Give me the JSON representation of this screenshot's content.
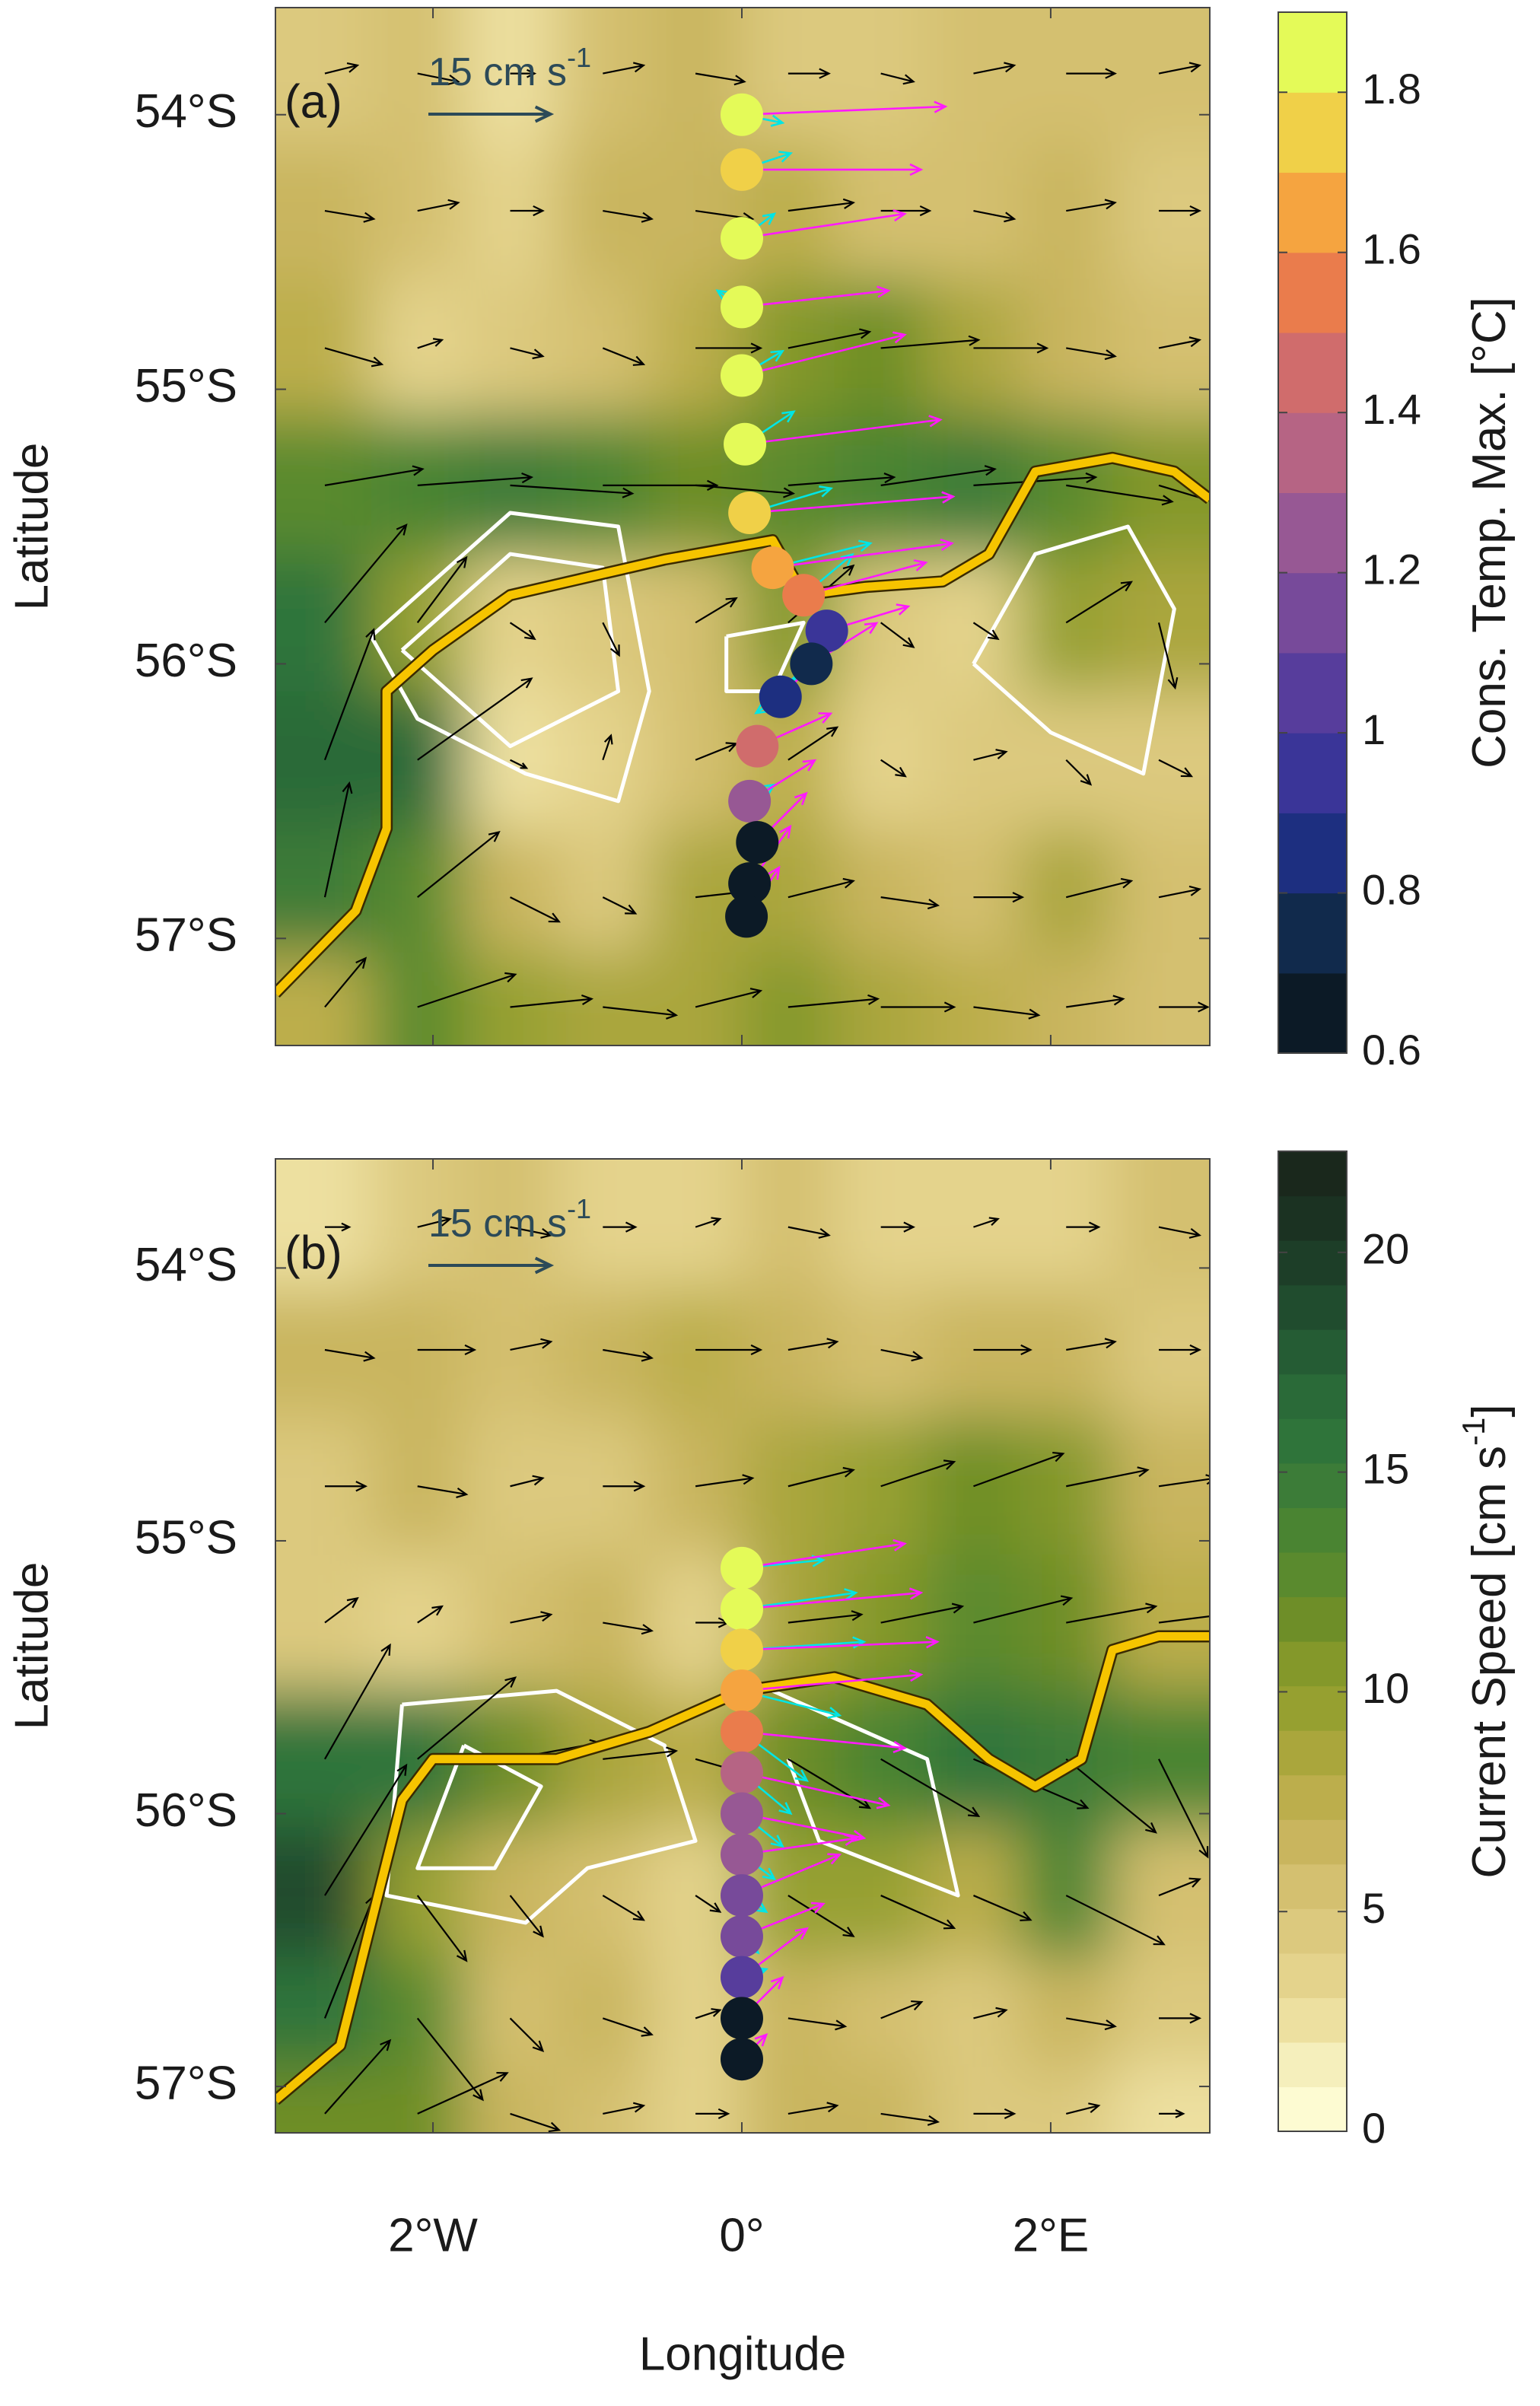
{
  "chart_data": [
    {
      "type": "quiver-map",
      "panel_label": "(a)",
      "scale_key": {
        "value": 15,
        "label": "15 cm s",
        "sup": "-1"
      },
      "ylabel": "Latitude",
      "xlim": [
        -3.02,
        3.03
      ],
      "ylim": [
        -57.39,
        -53.61
      ],
      "xticks": [
        -2,
        0,
        2
      ],
      "yticks": [
        {
          "value": -54,
          "label": "54°S"
        },
        {
          "value": -55,
          "label": "55°S"
        },
        {
          "value": -56,
          "label": "56°S"
        },
        {
          "value": -57,
          "label": "57°S"
        }
      ],
      "grid_lon": [
        -2.7,
        -2.1,
        -1.5,
        -0.9,
        -0.3,
        0.3,
        0.9,
        1.5,
        2.1,
        2.7
      ],
      "grid_lat": [
        -53.85,
        -54.35,
        -54.85,
        -55.35,
        -55.85,
        -56.35,
        -56.85,
        -57.25
      ],
      "u": [
        [
          4,
          5,
          3,
          5,
          6,
          5,
          4,
          5,
          6,
          5
        ],
        [
          6,
          5,
          4,
          6,
          7,
          8,
          6,
          5,
          6,
          5
        ],
        [
          7,
          3,
          4,
          5,
          8,
          10,
          12,
          9,
          6,
          5
        ],
        [
          12,
          14,
          15,
          14,
          12,
          13,
          14,
          15,
          13,
          10
        ],
        [
          10,
          6,
          3,
          2,
          5,
          8,
          4,
          3,
          8,
          2
        ],
        [
          6,
          14,
          2,
          1,
          5,
          6,
          3,
          4,
          3,
          4
        ],
        [
          3,
          10,
          6,
          4,
          9,
          8,
          7,
          6,
          8,
          5
        ],
        [
          5,
          12,
          10,
          9,
          8,
          11,
          9,
          8,
          7,
          6
        ]
      ],
      "v": [
        [
          1,
          -1,
          0,
          1,
          -1,
          0,
          -1,
          1,
          0,
          1
        ],
        [
          -1,
          1,
          0,
          -1,
          -1,
          1,
          0,
          -1,
          1,
          0
        ],
        [
          -2,
          1,
          -1,
          -2,
          0,
          2,
          1,
          0,
          -1,
          1
        ],
        [
          2,
          1,
          -1,
          0,
          -1,
          1,
          2,
          1,
          -2,
          -3
        ],
        [
          12,
          8,
          -2,
          -4,
          3,
          7,
          -3,
          -2,
          5,
          -8
        ],
        [
          16,
          10,
          -1,
          3,
          2,
          4,
          -2,
          1,
          -3,
          -2
        ],
        [
          14,
          8,
          -3,
          -2,
          1,
          2,
          -1,
          0,
          2,
          1
        ],
        [
          6,
          4,
          1,
          -1,
          2,
          1,
          0,
          -1,
          1,
          0
        ]
      ],
      "front": {
        "lon": [
          -3.02,
          -2.5,
          -2.3,
          -2.3,
          -2.0,
          -1.5,
          -0.5,
          0.2,
          0.4,
          0.8,
          1.3,
          1.6,
          1.9,
          2.4,
          2.8,
          3.03
        ],
        "lat": [
          -57.2,
          -56.9,
          -56.6,
          -56.1,
          -55.95,
          -55.75,
          -55.62,
          -55.55,
          -55.75,
          -55.72,
          -55.7,
          -55.6,
          -55.3,
          -55.25,
          -55.3,
          -55.4
        ]
      },
      "contours": [
        {
          "lon": [
            -2.4,
            -1.5,
            -0.8,
            -0.6,
            -0.8,
            -1.4,
            -2.1,
            -2.4
          ],
          "lat": [
            -55.9,
            -55.45,
            -55.5,
            -56.1,
            -56.5,
            -56.4,
            -56.2,
            -55.9
          ]
        },
        {
          "lon": [
            -2.2,
            -1.5,
            -0.9,
            -0.8,
            -1.5,
            -2.2
          ],
          "lat": [
            -55.95,
            -55.6,
            -55.65,
            -56.1,
            -56.3,
            -55.95
          ]
        },
        {
          "lon": [
            1.5,
            1.9,
            2.5,
            2.8,
            2.6,
            2.0,
            1.5
          ],
          "lat": [
            -56.0,
            -55.6,
            -55.5,
            -55.8,
            -56.4,
            -56.25,
            -56.0
          ]
        },
        {
          "lon": [
            -0.1,
            0.4,
            0.2,
            -0.1,
            -0.1
          ],
          "lat": [
            -55.9,
            -55.85,
            -56.1,
            -56.1,
            -55.9
          ]
        }
      ],
      "track": {
        "lon": [
          0,
          0,
          0,
          0,
          0,
          0.02,
          0.05,
          0.2,
          0.4,
          0.55,
          0.45,
          0.25,
          0.1,
          0.05,
          0.1,
          0.05,
          0.03
        ],
        "lat": [
          -54.0,
          -54.2,
          -54.45,
          -54.7,
          -54.95,
          -55.2,
          -55.45,
          -55.65,
          -55.75,
          -55.88,
          -56.0,
          -56.12,
          -56.3,
          -56.5,
          -56.65,
          -56.8,
          -56.92
        ],
        "temp": [
          1.8,
          1.78,
          1.85,
          1.88,
          1.88,
          1.85,
          1.78,
          1.6,
          1.55,
          0.95,
          0.75,
          0.8,
          1.4,
          1.2,
          0.7,
          0.65,
          0.62
        ]
      },
      "adcp": [
        {
          "color": "#00e5e5",
          "u": [
            5,
            6,
            4,
            -3,
            5,
            6,
            10,
            12,
            6,
            -4,
            -5,
            -3,
            2,
            3,
            2,
            1,
            1
          ],
          "v": [
            -1,
            2,
            3,
            2,
            3,
            4,
            3,
            3,
            5,
            -6,
            -4,
            -2,
            1,
            2,
            1,
            1,
            0
          ]
        },
        {
          "color": "#ff1aff",
          "u": [
            25,
            22,
            20,
            18,
            20,
            24,
            25,
            22,
            15,
            10,
            8,
            6,
            9,
            8,
            6,
            5,
            4
          ],
          "v": [
            1,
            0,
            3,
            2,
            5,
            3,
            2,
            3,
            4,
            3,
            5,
            6,
            4,
            5,
            6,
            7,
            6
          ]
        }
      ],
      "colorbar": {
        "label": "Cons. Temp. Max. [°C]",
        "lim": [
          0.6,
          1.9
        ],
        "ticks": [
          0.6,
          0.8,
          1,
          1.2,
          1.4,
          1.6,
          1.8
        ],
        "colors": [
          "#0c1a26",
          "#112a4c",
          "#1d2f80",
          "#3a3598",
          "#573d9c",
          "#774a9a",
          "#975894",
          "#b66484",
          "#d06c6c",
          "#ea7c4c",
          "#f5a440",
          "#f0d048",
          "#e4fa58"
        ]
      }
    },
    {
      "type": "quiver-map",
      "panel_label": "(b)",
      "scale_key": {
        "value": 15,
        "label": "15 cm s",
        "sup": "-1"
      },
      "xlabel": "Longitude",
      "ylabel": "Latitude",
      "xlim": [
        -3.02,
        3.03
      ],
      "ylim": [
        -57.17,
        -53.6
      ],
      "xticks": [
        {
          "value": -2,
          "label": "2°W"
        },
        {
          "value": 0,
          "label": "0°"
        },
        {
          "value": 2,
          "label": "2°E"
        }
      ],
      "yticks": [
        {
          "value": -54,
          "label": "54°S"
        },
        {
          "value": -55,
          "label": "55°S"
        },
        {
          "value": -56,
          "label": "56°S"
        },
        {
          "value": -57,
          "label": "57°S"
        }
      ],
      "grid_lon": [
        -2.7,
        -2.1,
        -1.5,
        -0.9,
        -0.3,
        0.3,
        0.9,
        1.5,
        2.1,
        2.7
      ],
      "grid_lat": [
        -53.85,
        -54.3,
        -54.8,
        -55.3,
        -55.8,
        -56.3,
        -56.75,
        -57.1
      ],
      "u": [
        [
          3,
          4,
          5,
          4,
          3,
          5,
          4,
          3,
          4,
          5
        ],
        [
          6,
          7,
          5,
          6,
          8,
          6,
          5,
          7,
          6,
          5
        ],
        [
          5,
          6,
          4,
          5,
          7,
          8,
          9,
          11,
          10,
          7
        ],
        [
          4,
          3,
          5,
          6,
          4,
          9,
          10,
          12,
          11,
          8
        ],
        [
          8,
          12,
          11,
          9,
          7,
          10,
          12,
          14,
          11,
          6
        ],
        [
          10,
          6,
          4,
          5,
          3,
          8,
          9,
          7,
          12,
          5
        ],
        [
          6,
          8,
          4,
          6,
          3,
          7,
          5,
          4,
          6,
          5
        ],
        [
          8,
          11,
          6,
          5,
          4,
          6,
          7,
          5,
          4,
          3
        ]
      ],
      "v": [
        [
          0,
          1,
          -1,
          0,
          1,
          -1,
          0,
          1,
          0,
          -1
        ],
        [
          -1,
          0,
          1,
          -1,
          0,
          1,
          -1,
          0,
          1,
          0
        ],
        [
          0,
          -1,
          1,
          0,
          1,
          2,
          3,
          4,
          2,
          1
        ],
        [
          3,
          2,
          1,
          -1,
          0,
          1,
          2,
          3,
          2,
          1
        ],
        [
          14,
          10,
          2,
          1,
          -2,
          -6,
          -7,
          -6,
          -9,
          -12
        ],
        [
          16,
          -8,
          -5,
          -3,
          -2,
          -5,
          -4,
          -3,
          -6,
          2
        ],
        [
          15,
          -10,
          -4,
          -2,
          1,
          -1,
          2,
          1,
          -1,
          0
        ],
        [
          9,
          5,
          -2,
          1,
          0,
          1,
          -1,
          0,
          1,
          0
        ]
      ],
      "front": {
        "lon": [
          -3.02,
          -2.6,
          -2.4,
          -2.2,
          -2.0,
          -1.2,
          -0.6,
          0,
          0.6,
          1.2,
          1.6,
          1.9,
          2.2,
          2.4,
          2.7,
          3.03
        ],
        "lat": [
          -57.05,
          -56.85,
          -56.4,
          -55.95,
          -55.8,
          -55.8,
          -55.7,
          -55.55,
          -55.5,
          -55.6,
          -55.8,
          -55.9,
          -55.8,
          -55.4,
          -55.35,
          -55.35
        ]
      },
      "contours": [
        {
          "lon": [
            -2.2,
            -1.2,
            -0.5,
            -0.3,
            -1.0,
            -1.4,
            -2.3,
            -2.2
          ],
          "lat": [
            -55.6,
            -55.55,
            -55.75,
            -56.1,
            -56.2,
            -56.4,
            -56.3,
            -55.6
          ]
        },
        {
          "lon": [
            -1.8,
            -1.3,
            -1.6,
            -2.1,
            -1.8
          ],
          "lat": [
            -55.75,
            -55.9,
            -56.2,
            -56.2,
            -55.75
          ]
        },
        {
          "lon": [
            0.2,
            1.2,
            1.4,
            0.5,
            0.3
          ],
          "lat": [
            -55.55,
            -55.8,
            -56.3,
            -56.1,
            -55.8
          ]
        }
      ],
      "track": {
        "lon": [
          0,
          0,
          0,
          0,
          0,
          0,
          0,
          0,
          0,
          0,
          0,
          0,
          0
        ],
        "lat": [
          -55.1,
          -55.25,
          -55.4,
          -55.55,
          -55.7,
          -55.85,
          -56.0,
          -56.15,
          -56.3,
          -56.45,
          -56.6,
          -56.75,
          -56.9
        ],
        "temp": [
          1.85,
          1.82,
          1.72,
          1.62,
          1.5,
          1.35,
          1.28,
          1.2,
          1.15,
          1.1,
          1.0,
          0.7,
          0.65
        ]
      },
      "adcp": [
        {
          "color": "#00e5e5",
          "u": [
            10,
            14,
            15,
            12,
            8,
            6,
            5,
            4,
            3,
            2,
            3,
            2,
            1
          ],
          "v": [
            1,
            2,
            1,
            -3,
            -6,
            -5,
            -4,
            -3,
            -2,
            -2,
            1,
            1,
            0
          ]
        },
        {
          "color": "#ff1aff",
          "u": [
            20,
            22,
            24,
            22,
            20,
            18,
            15,
            14,
            12,
            10,
            8,
            5,
            3
          ],
          "v": [
            3,
            2,
            1,
            2,
            -2,
            -4,
            -3,
            2,
            5,
            4,
            6,
            5,
            3
          ]
        }
      ],
      "colorbar": {
        "label_parts": [
          "Current Speed [cm s",
          "-1",
          "]"
        ],
        "lim": [
          0,
          22.3
        ],
        "ticks": [
          0,
          5,
          10,
          15,
          20
        ],
        "colors": [
          "#fdfbd2",
          "#f5efbc",
          "#ede0a0",
          "#e4d38c",
          "#dcc97e",
          "#d4c070",
          "#c9b55e",
          "#bcae4c",
          "#aaa63c",
          "#96a030",
          "#84982a",
          "#6e8e28",
          "#5a8a2e",
          "#4a8432",
          "#3c7c38",
          "#2f743a",
          "#2a6a38",
          "#255c34",
          "#204c2e",
          "#1d3e28",
          "#1b3222",
          "#1a281c"
        ]
      }
    }
  ]
}
